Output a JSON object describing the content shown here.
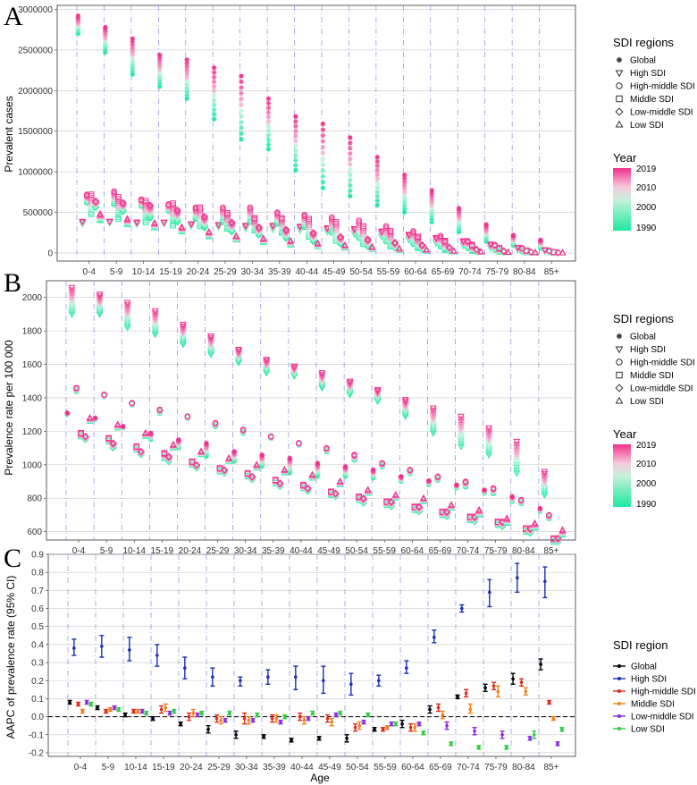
{
  "panels": {
    "A": {
      "letter": "A",
      "ylabel": "Prevalent cases"
    },
    "B": {
      "letter": "B",
      "ylabel": "Prevalence rate per 100 000"
    },
    "C": {
      "letter": "C",
      "ylabel": "AAPC of prevalence rate (95% CI)",
      "xlabel": "Age"
    }
  },
  "legend_sdi_regions": {
    "title": "SDI regions",
    "items": [
      "Global",
      "High SDI",
      "High-middle SDI",
      "Middle SDI",
      "Low-middle SDI",
      "Low SDI"
    ]
  },
  "legend_year": {
    "title": "Year",
    "labels": [
      "2019",
      "2010",
      "2000",
      "1990"
    ],
    "colors": {
      "start": "#1de9a0",
      "end": "#f0308c"
    }
  },
  "legend_sdi_region": {
    "title": "SDI region",
    "items": [
      "Global",
      "High SDI",
      "High-middle SDI",
      "Middle SDI",
      "Low-middle SDI",
      "Low SDI"
    ],
    "colors": [
      "#000000",
      "#1a2fb0",
      "#e02a1a",
      "#f0801a",
      "#8a2be2",
      "#2ecc40"
    ]
  },
  "chart_data": [
    {
      "type": "scatter",
      "panel": "A",
      "ylabel": "Prevalent cases",
      "categories": [
        "0-4",
        "5-9",
        "10-14",
        "15-19",
        "20-24",
        "25-29",
        "30-34",
        "35-39",
        "40-44",
        "45-49",
        "50-54",
        "55-59",
        "60-64",
        "65-69",
        "70-74",
        "75-79",
        "80-84",
        "85+"
      ],
      "yticks": [
        "0",
        "500000",
        "1000000",
        "1500000",
        "2000000",
        "2500000",
        "3000000"
      ],
      "ylim": [
        -100000,
        3050000
      ],
      "year_range": [
        1990,
        2019
      ],
      "series": [
        {
          "name": "Global",
          "start": [
            2700000,
            2470000,
            2200000,
            2050000,
            1900000,
            1650000,
            1400000,
            1280000,
            1020000,
            800000,
            700000,
            590000,
            500000,
            380000,
            260000,
            140000,
            90000,
            55000
          ],
          "end": [
            2920000,
            2780000,
            2640000,
            2440000,
            2380000,
            2280000,
            2180000,
            1900000,
            1680000,
            1590000,
            1420000,
            1180000,
            960000,
            770000,
            550000,
            350000,
            220000,
            160000
          ]
        },
        {
          "name": "High SDI",
          "start": [
            360000,
            370000,
            350000,
            360000,
            330000,
            320000,
            300000,
            290000,
            280000,
            260000,
            230000,
            200000,
            160000,
            120000,
            90000,
            60000,
            40000,
            20000
          ],
          "end": [
            390000,
            390000,
            380000,
            380000,
            360000,
            350000,
            340000,
            340000,
            330000,
            310000,
            300000,
            270000,
            230000,
            190000,
            150000,
            110000,
            70000,
            40000
          ]
        },
        {
          "name": "High-middle SDI",
          "start": [
            620000,
            600000,
            580000,
            520000,
            420000,
            380000,
            380000,
            360000,
            320000,
            250000,
            180000,
            140000,
            110000,
            80000,
            60000,
            40000,
            20000,
            10000
          ],
          "end": [
            720000,
            760000,
            660000,
            600000,
            560000,
            560000,
            560000,
            500000,
            470000,
            440000,
            400000,
            330000,
            270000,
            210000,
            150000,
            100000,
            60000,
            30000
          ]
        },
        {
          "name": "Middle SDI",
          "start": [
            480000,
            420000,
            380000,
            340000,
            330000,
            300000,
            280000,
            250000,
            200000,
            150000,
            110000,
            80000,
            60000,
            40000,
            25000,
            15000,
            8000,
            3000
          ],
          "end": [
            720000,
            690000,
            640000,
            610000,
            560000,
            490000,
            430000,
            430000,
            420000,
            380000,
            330000,
            270000,
            200000,
            150000,
            100000,
            60000,
            30000,
            12000
          ]
        },
        {
          "name": "Low-middle SDI",
          "start": [
            560000,
            510000,
            430000,
            380000,
            310000,
            260000,
            220000,
            180000,
            140000,
            110000,
            80000,
            60000,
            40000,
            25000,
            15000,
            8000,
            4000,
            2000
          ],
          "end": [
            640000,
            620000,
            590000,
            530000,
            450000,
            380000,
            320000,
            290000,
            250000,
            200000,
            170000,
            130000,
            100000,
            70000,
            45000,
            25000,
            12000,
            5000
          ]
        },
        {
          "name": "Low SDI",
          "start": [
            400000,
            350000,
            310000,
            260000,
            200000,
            160000,
            130000,
            100000,
            80000,
            60000,
            45000,
            30000,
            20000,
            12000,
            8000,
            4000,
            2000,
            1000
          ],
          "end": [
            480000,
            420000,
            370000,
            320000,
            260000,
            210000,
            180000,
            150000,
            120000,
            95000,
            75000,
            55000,
            40000,
            25000,
            15000,
            8000,
            4000,
            2000
          ]
        }
      ]
    },
    {
      "type": "scatter",
      "panel": "B",
      "ylabel": "Prevalence rate per 100 000",
      "categories": [
        "0-4",
        "5-9",
        "10-14",
        "15-19",
        "20-24",
        "25-29",
        "30-34",
        "35-39",
        "40-44",
        "45-49",
        "50-54",
        "55-59",
        "60-64",
        "65-69",
        "70-74",
        "75-79",
        "80-84",
        "85+"
      ],
      "yticks": [
        "600",
        "800",
        "1000",
        "1200",
        "1400",
        "1600",
        "1800",
        "2000"
      ],
      "ylim": [
        550,
        2100
      ],
      "year_range": [
        1990,
        2019
      ],
      "series": [
        {
          "name": "Global",
          "start": [
            1300,
            1270,
            1220,
            1150,
            1100,
            1050,
            1020,
            990,
            950,
            930,
            930,
            920,
            900,
            880,
            860,
            830,
            780,
            720
          ],
          "end": [
            1310,
            1280,
            1230,
            1190,
            1150,
            1130,
            1080,
            1060,
            1040,
            1010,
            990,
            970,
            930,
            905,
            880,
            850,
            810,
            740
          ]
        },
        {
          "name": "High SDI",
          "start": [
            1900,
            1900,
            1820,
            1780,
            1720,
            1660,
            1610,
            1550,
            1530,
            1460,
            1420,
            1380,
            1290,
            1190,
            1110,
            1060,
            950,
            820
          ],
          "end": [
            2060,
            2020,
            1970,
            1920,
            1840,
            1770,
            1690,
            1630,
            1590,
            1550,
            1500,
            1450,
            1390,
            1340,
            1290,
            1220,
            1140,
            960
          ]
        },
        {
          "name": "High-middle SDI",
          "start": [
            1440,
            1410,
            1360,
            1310,
            1280,
            1230,
            1190,
            1160,
            1120,
            1080,
            1030,
            990,
            950,
            910,
            870,
            830,
            770,
            680
          ],
          "end": [
            1460,
            1420,
            1370,
            1330,
            1290,
            1250,
            1210,
            1170,
            1130,
            1100,
            1060,
            1010,
            970,
            930,
            900,
            860,
            790,
            700
          ]
        },
        {
          "name": "Middle SDI",
          "start": [
            1170,
            1140,
            1090,
            1040,
            1000,
            960,
            930,
            890,
            860,
            820,
            790,
            760,
            730,
            700,
            670,
            640,
            600,
            540
          ],
          "end": [
            1190,
            1160,
            1110,
            1070,
            1020,
            980,
            950,
            910,
            880,
            840,
            810,
            780,
            750,
            720,
            690,
            660,
            620,
            560
          ]
        },
        {
          "name": "Low-middle SDI",
          "start": [
            1150,
            1100,
            1060,
            1020,
            980,
            950,
            910,
            870,
            840,
            810,
            770,
            750,
            720,
            690,
            660,
            630,
            590,
            540
          ],
          "end": [
            1170,
            1130,
            1080,
            1050,
            1000,
            970,
            930,
            890,
            860,
            830,
            800,
            780,
            750,
            720,
            690,
            660,
            620,
            560
          ]
        },
        {
          "name": "Low SDI",
          "start": [
            1260,
            1220,
            1170,
            1100,
            1060,
            1020,
            980,
            950,
            920,
            880,
            830,
            800,
            780,
            740,
            700,
            650,
            620,
            580
          ],
          "end": [
            1280,
            1240,
            1190,
            1120,
            1080,
            1040,
            1000,
            970,
            940,
            900,
            850,
            820,
            800,
            760,
            730,
            680,
            650,
            610
          ]
        }
      ]
    },
    {
      "type": "errorbar",
      "panel": "C",
      "ylabel": "AAPC of prevalence rate (95% CI)",
      "xlabel": "Age",
      "categories": [
        "0-4",
        "5-9",
        "10-14",
        "15-19",
        "20-24",
        "25-29",
        "30-34",
        "35-39",
        "40-44",
        "45-49",
        "50-54",
        "55-59",
        "60-64",
        "65-69",
        "70-74",
        "75-79",
        "80-84",
        "85+"
      ],
      "yticks": [
        "-0.2",
        "-0.1",
        "0.0",
        "0.1",
        "0.2",
        "0.3",
        "0.4",
        "0.5",
        "0.6",
        "0.7",
        "0.8",
        "0.9"
      ],
      "ylim": [
        -0.22,
        0.9
      ],
      "series": [
        {
          "name": "Global",
          "values": [
            0.08,
            0.05,
            0.01,
            -0.01,
            -0.04,
            -0.07,
            -0.1,
            -0.11,
            -0.13,
            -0.12,
            -0.12,
            -0.07,
            -0.04,
            0.04,
            0.11,
            0.16,
            0.21,
            0.29
          ],
          "lower": [
            0.07,
            0.04,
            0.0,
            -0.02,
            -0.05,
            -0.09,
            -0.12,
            -0.12,
            -0.14,
            -0.13,
            -0.14,
            -0.08,
            -0.06,
            0.02,
            0.1,
            0.14,
            0.18,
            0.26
          ],
          "upper": [
            0.09,
            0.06,
            0.02,
            0.0,
            -0.03,
            -0.05,
            -0.08,
            -0.1,
            -0.12,
            -0.11,
            -0.1,
            -0.06,
            -0.02,
            0.06,
            0.12,
            0.18,
            0.24,
            0.32
          ]
        },
        {
          "name": "High SDI",
          "values": [
            0.38,
            0.39,
            0.37,
            0.34,
            0.27,
            0.22,
            0.2,
            0.22,
            0.22,
            0.2,
            0.18,
            0.2,
            0.27,
            0.44,
            0.6,
            0.69,
            0.77,
            0.75
          ],
          "lower": [
            0.34,
            0.33,
            0.31,
            0.28,
            0.21,
            0.17,
            0.17,
            0.18,
            0.15,
            0.13,
            0.12,
            0.17,
            0.24,
            0.41,
            0.58,
            0.61,
            0.69,
            0.66
          ],
          "upper": [
            0.43,
            0.45,
            0.44,
            0.4,
            0.33,
            0.27,
            0.22,
            0.26,
            0.28,
            0.28,
            0.24,
            0.23,
            0.31,
            0.48,
            0.62,
            0.76,
            0.85,
            0.83
          ]
        },
        {
          "name": "High-middle SDI",
          "values": [
            0.07,
            0.03,
            0.03,
            0.04,
            0.0,
            -0.01,
            -0.01,
            -0.01,
            0.0,
            -0.01,
            -0.06,
            -0.07,
            -0.06,
            0.05,
            0.13,
            0.17,
            0.19,
            0.08
          ],
          "lower": [
            0.06,
            0.02,
            0.02,
            0.02,
            -0.02,
            -0.03,
            -0.04,
            -0.03,
            -0.02,
            -0.03,
            -0.08,
            -0.08,
            -0.08,
            0.03,
            0.11,
            0.15,
            0.17,
            0.07
          ],
          "upper": [
            0.08,
            0.04,
            0.04,
            0.06,
            0.02,
            0.01,
            0.02,
            0.01,
            0.02,
            0.01,
            -0.04,
            -0.06,
            -0.04,
            0.07,
            0.15,
            0.19,
            0.21,
            0.09
          ]
        },
        {
          "name": "Middle SDI",
          "values": [
            0.03,
            0.04,
            0.03,
            0.05,
            0.02,
            -0.02,
            -0.02,
            -0.01,
            -0.02,
            -0.03,
            -0.05,
            -0.06,
            -0.06,
            0.01,
            0.04,
            0.14,
            0.14,
            -0.01
          ],
          "lower": [
            0.02,
            0.03,
            0.02,
            0.03,
            0.0,
            -0.04,
            -0.04,
            -0.03,
            -0.04,
            -0.05,
            -0.07,
            -0.07,
            -0.08,
            -0.01,
            0.02,
            0.11,
            0.12,
            -0.02
          ],
          "upper": [
            0.04,
            0.05,
            0.04,
            0.07,
            0.04,
            0.0,
            0.0,
            0.01,
            0.0,
            -0.01,
            -0.03,
            -0.05,
            -0.04,
            0.03,
            0.07,
            0.17,
            0.16,
            0.0
          ]
        },
        {
          "name": "Low-middle SDI",
          "values": [
            0.08,
            0.05,
            0.03,
            0.02,
            0.01,
            -0.02,
            -0.02,
            -0.03,
            -0.01,
            0.01,
            -0.03,
            -0.04,
            -0.04,
            -0.05,
            -0.08,
            -0.1,
            -0.12,
            -0.15
          ],
          "lower": [
            0.07,
            0.04,
            0.02,
            0.01,
            0.0,
            -0.03,
            -0.03,
            -0.04,
            -0.02,
            0.0,
            -0.04,
            -0.05,
            -0.05,
            -0.07,
            -0.1,
            -0.12,
            -0.13,
            -0.16
          ],
          "upper": [
            0.09,
            0.06,
            0.04,
            0.03,
            0.02,
            -0.01,
            -0.01,
            -0.02,
            0.0,
            0.02,
            -0.02,
            -0.03,
            -0.03,
            -0.03,
            -0.06,
            -0.08,
            -0.11,
            -0.14
          ]
        },
        {
          "name": "Low SDI",
          "values": [
            0.07,
            0.04,
            0.02,
            0.03,
            0.02,
            0.02,
            0.01,
            0.0,
            0.02,
            0.02,
            0.01,
            -0.04,
            -0.09,
            -0.15,
            -0.17,
            -0.17,
            -0.1,
            -0.07
          ],
          "lower": [
            0.06,
            0.03,
            0.01,
            0.02,
            0.01,
            0.01,
            0.0,
            -0.01,
            0.01,
            0.01,
            0.0,
            -0.05,
            -0.1,
            -0.16,
            -0.18,
            -0.18,
            -0.12,
            -0.08
          ],
          "upper": [
            0.08,
            0.05,
            0.03,
            0.04,
            0.03,
            0.03,
            0.02,
            0.01,
            0.03,
            0.03,
            0.02,
            -0.03,
            -0.08,
            -0.14,
            -0.16,
            -0.16,
            -0.08,
            -0.06
          ]
        }
      ]
    }
  ]
}
